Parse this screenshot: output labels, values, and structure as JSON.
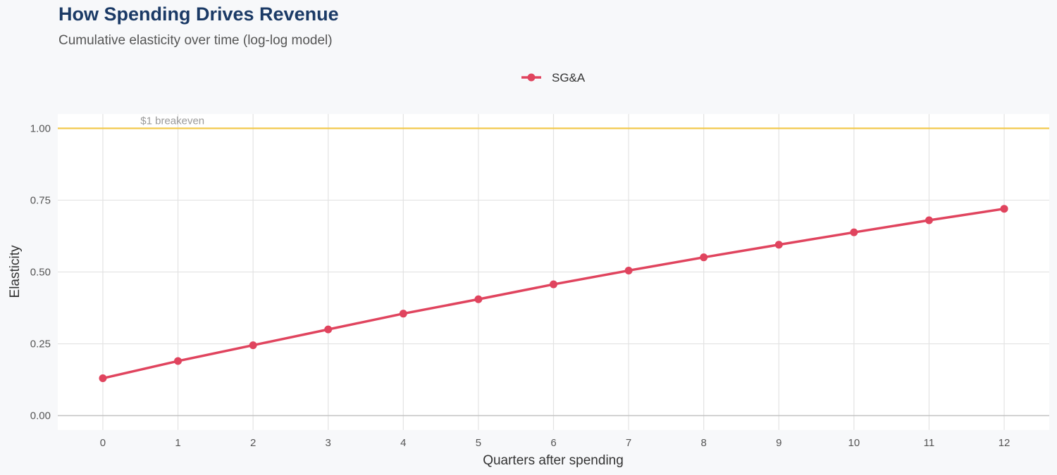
{
  "chart_data": {
    "type": "line",
    "title": "How Spending Drives Revenue",
    "subtitle": "Cumulative elasticity over time (log-log model)",
    "xlabel": "Quarters after spending",
    "ylabel": "Elasticity",
    "x": [
      0,
      1,
      2,
      3,
      4,
      5,
      6,
      7,
      8,
      9,
      10,
      11,
      12
    ],
    "xticks": [
      "0",
      "1",
      "2",
      "3",
      "4",
      "5",
      "6",
      "7",
      "8",
      "9",
      "10",
      "11",
      "12"
    ],
    "xlim": [
      -0.6,
      12.6
    ],
    "yticks": [
      "0.00",
      "0.25",
      "0.50",
      "0.75",
      "1.00"
    ],
    "ytick_values": [
      0,
      0.25,
      0.5,
      0.75,
      1.0
    ],
    "ylim": [
      -0.05,
      1.05
    ],
    "series": [
      {
        "name": "SG&A",
        "color": "#e0445e",
        "values": [
          0.13,
          0.19,
          0.245,
          0.3,
          0.355,
          0.405,
          0.457,
          0.505,
          0.551,
          0.595,
          0.638,
          0.68,
          0.72
        ]
      }
    ],
    "reference_line": {
      "y": 1.0,
      "label": "$1 breakeven",
      "color": "#f2c94c"
    },
    "grid": true,
    "legend_position": "top-center"
  }
}
